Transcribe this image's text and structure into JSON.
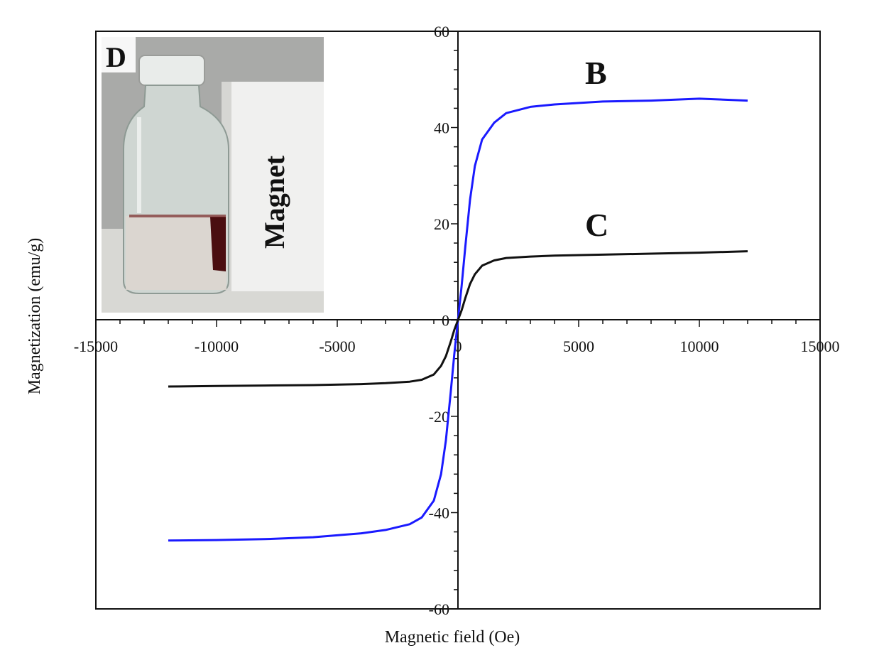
{
  "chart_data": {
    "type": "line",
    "xlabel": "Magnetic field (Oe)",
    "ylabel": "Magnetization (emu/g)",
    "xlim": [
      -15000,
      15000
    ],
    "ylim": [
      -60,
      60
    ],
    "xticks": [
      -15000,
      -10000,
      -5000,
      0,
      5000,
      10000,
      15000
    ],
    "yticks": [
      -60,
      -40,
      -20,
      0,
      20,
      40,
      60
    ],
    "grid": false,
    "series": [
      {
        "name": "B",
        "color": "#1a1aff",
        "x": [
          -12000,
          -10000,
          -8000,
          -6000,
          -4000,
          -3000,
          -2000,
          -1500,
          -1000,
          -700,
          -500,
          -300,
          -150,
          0,
          150,
          300,
          500,
          700,
          1000,
          1500,
          2000,
          3000,
          4000,
          6000,
          8000,
          10000,
          12000
        ],
        "y": [
          -45.8,
          -45.7,
          -45.5,
          -45.1,
          -44.3,
          -43.6,
          -42.4,
          -41.0,
          -37.5,
          -32.0,
          -25.0,
          -15.0,
          -7.0,
          0,
          7.0,
          15.0,
          25.0,
          32.0,
          37.5,
          41.0,
          43.0,
          44.3,
          44.8,
          45.4,
          45.6,
          46.0,
          45.6
        ]
      },
      {
        "name": "C",
        "color": "#111111",
        "x": [
          -12000,
          -10000,
          -8000,
          -6000,
          -4000,
          -3000,
          -2000,
          -1500,
          -1000,
          -700,
          -500,
          -300,
          -150,
          0,
          150,
          300,
          500,
          700,
          1000,
          1500,
          2000,
          3000,
          4000,
          6000,
          8000,
          10000,
          12000
        ],
        "y": [
          -13.8,
          -13.7,
          -13.6,
          -13.5,
          -13.3,
          -13.1,
          -12.8,
          -12.4,
          -11.3,
          -9.5,
          -7.5,
          -4.5,
          -2.0,
          0,
          2.0,
          4.5,
          7.5,
          9.5,
          11.3,
          12.4,
          12.9,
          13.2,
          13.4,
          13.6,
          13.8,
          14.0,
          14.3
        ]
      }
    ],
    "annotations": [
      "B",
      "C"
    ]
  },
  "inset": {
    "panel_letter": "D",
    "magnet_label": "Magnet",
    "description_icon": "bottle-with-magnet-photo-icon"
  }
}
